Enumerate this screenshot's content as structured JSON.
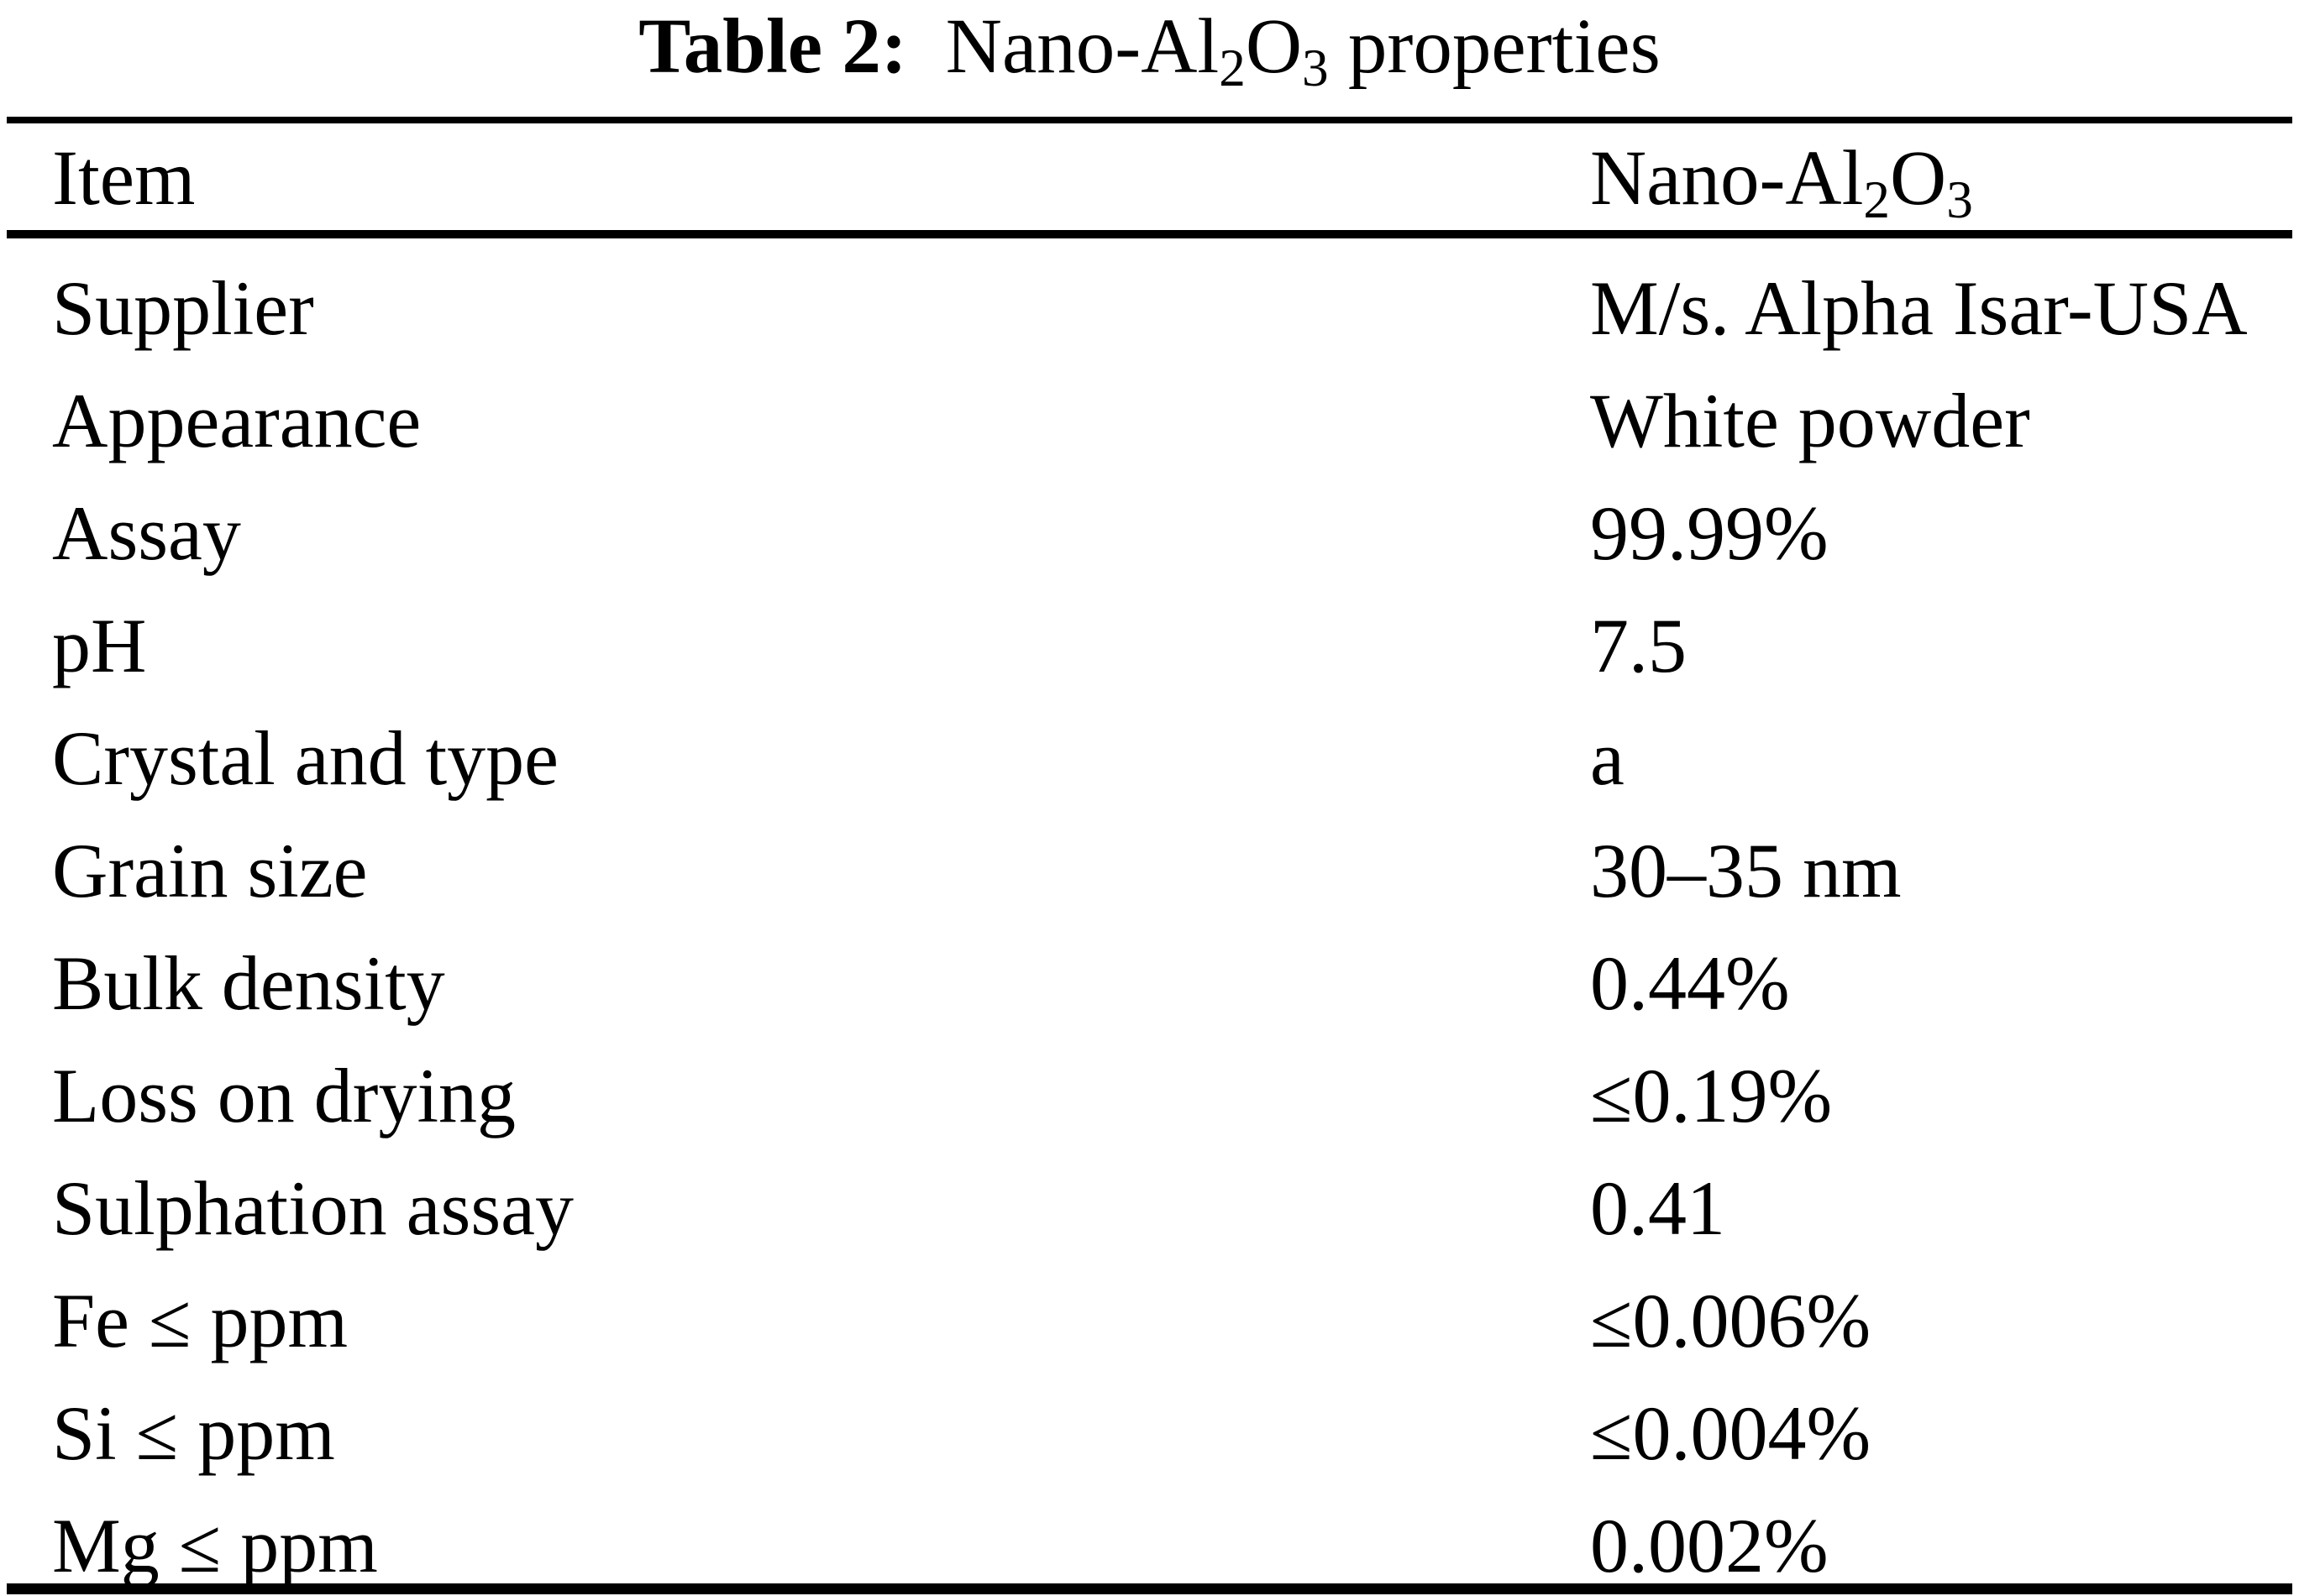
{
  "caption": {
    "label": "Table 2:",
    "formula": {
      "pre": "Nano-Al",
      "sub1": "2",
      "mid": "O",
      "sub2": "3"
    },
    "suffix": " properties"
  },
  "table": {
    "columns": {
      "item": "Item",
      "value": {
        "pre": "Nano-Al",
        "sub1": "2",
        "mid": "O",
        "sub2": "3"
      }
    },
    "rows": [
      {
        "item": "Supplier",
        "value": "M/s. Alpha Isar-USA"
      },
      {
        "item": "Appearance",
        "value": "White powder"
      },
      {
        "item": "Assay",
        "value": "99.99%"
      },
      {
        "item": "pH",
        "value": "7.5"
      },
      {
        "item": "Crystal and type",
        "value": "a"
      },
      {
        "item": "Grain size",
        "value": "30–35 nm"
      },
      {
        "item": "Bulk density",
        "value": "0.44%"
      },
      {
        "item": "Loss on drying",
        "value": "≤0.19%"
      },
      {
        "item": "Sulphation assay",
        "value": "0.41"
      },
      {
        "item": "Fe ≤ ppm",
        "value": "≤0.006%"
      },
      {
        "item": "Si ≤ ppm",
        "value": "≤0.004%"
      },
      {
        "item": "Mg ≤ ppm",
        "value": "0.002%"
      }
    ]
  },
  "colors": {
    "text": "#000000",
    "background": "#ffffff",
    "rule": "#000000"
  }
}
